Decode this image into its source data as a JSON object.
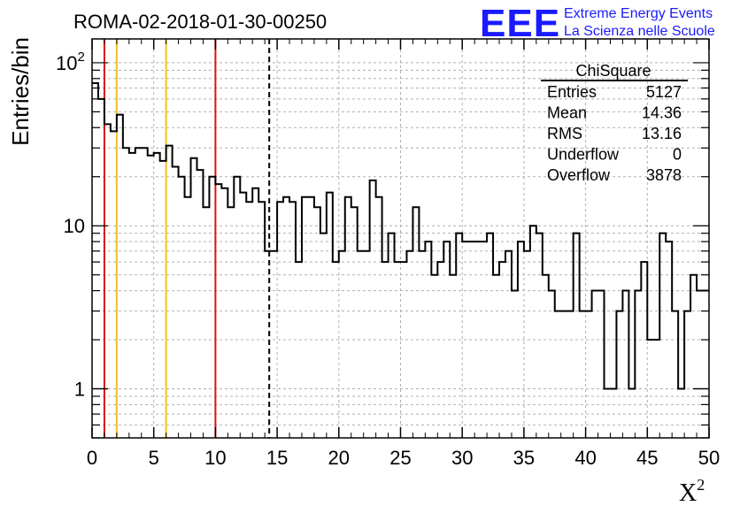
{
  "header": {
    "run_title": "ROMA-02-2018-01-30-00250",
    "logo_mark": "EEE",
    "logo_line1": "Extreme Energy Events",
    "logo_line2": "La Scienza nelle Scuole"
  },
  "stats_box": {
    "title": "ChiSquare",
    "rows": [
      {
        "label": "Entries",
        "value": "5127"
      },
      {
        "label": "Mean",
        "value": "14.36"
      },
      {
        "label": "RMS",
        "value": "13.16"
      },
      {
        "label": "Underflow",
        "value": "0"
      },
      {
        "label": "Overflow",
        "value": "3878"
      }
    ]
  },
  "chart_data": {
    "type": "bar",
    "histogram": true,
    "ylabel": "Entries/bin",
    "xlabel_base": "X",
    "xlabel_sup": "2",
    "xlim": [
      0,
      50
    ],
    "ylim": [
      0.5,
      140
    ],
    "ylog": true,
    "grid": true,
    "bin_width": 0.5,
    "x_ticks": [
      "0",
      "5",
      "10",
      "15",
      "20",
      "25",
      "30",
      "35",
      "40",
      "45",
      "50"
    ],
    "y_ticks": [
      {
        "value": 1,
        "label": "1"
      },
      {
        "value": 10,
        "label": "10"
      },
      {
        "value": 100,
        "label": "10",
        "sup": "2"
      }
    ],
    "vertical_lines": [
      {
        "x": 1,
        "color": "#dd1111",
        "style": "solid"
      },
      {
        "x": 2,
        "color": "#f0c020",
        "style": "solid"
      },
      {
        "x": 6,
        "color": "#f0c020",
        "style": "solid"
      },
      {
        "x": 10,
        "color": "#dd1111",
        "style": "solid"
      },
      {
        "x": 14.36,
        "color": "#000000",
        "style": "dashed"
      }
    ],
    "values": [
      75,
      60,
      42,
      38,
      48,
      30,
      28,
      30,
      30,
      27,
      28,
      25,
      31,
      23,
      20,
      15,
      26,
      22,
      13,
      20,
      18,
      17,
      13,
      20,
      16,
      14,
      17,
      14,
      7,
      7,
      14,
      15,
      14,
      6,
      15,
      15,
      13,
      9,
      16,
      6,
      7,
      15,
      13,
      7,
      7,
      19,
      15,
      6,
      9,
      6,
      6,
      7,
      13,
      7,
      8,
      5,
      6,
      8,
      5,
      9,
      8,
      8,
      8,
      8,
      9,
      5,
      6,
      7,
      4,
      8,
      7,
      10,
      9,
      5,
      4,
      3,
      3,
      3,
      9,
      3,
      3,
      4,
      4,
      1,
      1,
      3,
      4,
      1,
      4,
      6,
      2,
      2,
      9,
      8,
      3,
      1,
      3,
      5,
      4,
      4,
      2
    ]
  }
}
